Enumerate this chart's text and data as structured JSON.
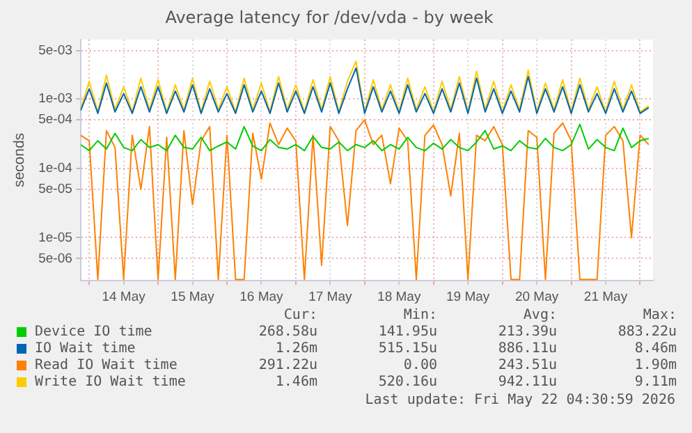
{
  "chart_data": {
    "type": "line",
    "title": "Average latency for /dev/vda - by week",
    "ylabel": "seconds",
    "log": true,
    "grid": true,
    "legend": "bottom",
    "marker": "none",
    "line_style": "solid",
    "xlim": [
      "2026-05-13T21:00",
      "2026-05-22T04:30"
    ],
    "xticks": [
      {
        "value": "2026-05-14T00:00",
        "label": null
      },
      {
        "value": "2026-05-14T12:00",
        "label": "14 May"
      },
      {
        "value": "2026-05-15T00:00",
        "label": null
      },
      {
        "value": "2026-05-15T12:00",
        "label": "15 May"
      },
      {
        "value": "2026-05-16T00:00",
        "label": null
      },
      {
        "value": "2026-05-16T12:00",
        "label": "16 May"
      },
      {
        "value": "2026-05-17T00:00",
        "label": null
      },
      {
        "value": "2026-05-17T12:00",
        "label": "17 May"
      },
      {
        "value": "2026-05-18T00:00",
        "label": null
      },
      {
        "value": "2026-05-18T12:00",
        "label": "18 May"
      },
      {
        "value": "2026-05-19T00:00",
        "label": null
      },
      {
        "value": "2026-05-19T12:00",
        "label": "19 May"
      },
      {
        "value": "2026-05-20T00:00",
        "label": null
      },
      {
        "value": "2026-05-20T12:00",
        "label": "20 May"
      },
      {
        "value": "2026-05-21T00:00",
        "label": null
      },
      {
        "value": "2026-05-21T12:00",
        "label": "21 May"
      },
      {
        "value": "2026-05-22T00:00",
        "label": null
      }
    ],
    "ylim": [
      2.4e-06,
      0.0072
    ],
    "yticks": [
      {
        "value": 5e-06,
        "label": "5e-06"
      },
      {
        "value": 1e-05,
        "label": "1e-05"
      },
      {
        "value": 5e-05,
        "label": "5e-05"
      },
      {
        "value": 0.0001,
        "label": "1e-04"
      },
      {
        "value": 0.0005,
        "label": "5e-04"
      },
      {
        "value": 0.001,
        "label": "1e-03"
      },
      {
        "value": 0.005,
        "label": "5e-03"
      }
    ],
    "x": [
      "2026-05-13T21:00",
      "2026-05-14T00:00",
      "2026-05-14T03:00",
      "2026-05-14T06:00",
      "2026-05-14T09:00",
      "2026-05-14T12:00",
      "2026-05-14T15:00",
      "2026-05-14T18:00",
      "2026-05-14T21:00",
      "2026-05-15T00:00",
      "2026-05-15T03:00",
      "2026-05-15T06:00",
      "2026-05-15T09:00",
      "2026-05-15T12:00",
      "2026-05-15T15:00",
      "2026-05-15T18:00",
      "2026-05-15T21:00",
      "2026-05-16T00:00",
      "2026-05-16T03:00",
      "2026-05-16T06:00",
      "2026-05-16T09:00",
      "2026-05-16T12:00",
      "2026-05-16T15:00",
      "2026-05-16T18:00",
      "2026-05-16T21:00",
      "2026-05-17T00:00",
      "2026-05-17T03:00",
      "2026-05-17T06:00",
      "2026-05-17T09:00",
      "2026-05-17T12:00",
      "2026-05-17T15:00",
      "2026-05-17T18:00",
      "2026-05-17T21:00",
      "2026-05-18T00:00",
      "2026-05-18T03:00",
      "2026-05-18T06:00",
      "2026-05-18T09:00",
      "2026-05-18T12:00",
      "2026-05-18T15:00",
      "2026-05-18T18:00",
      "2026-05-18T21:00",
      "2026-05-19T00:00",
      "2026-05-19T03:00",
      "2026-05-19T06:00",
      "2026-05-19T09:00",
      "2026-05-19T12:00",
      "2026-05-19T15:00",
      "2026-05-19T18:00",
      "2026-05-19T21:00",
      "2026-05-20T00:00",
      "2026-05-20T03:00",
      "2026-05-20T06:00",
      "2026-05-20T09:00",
      "2026-05-20T12:00",
      "2026-05-20T15:00",
      "2026-05-20T18:00",
      "2026-05-20T21:00",
      "2026-05-21T00:00",
      "2026-05-21T03:00",
      "2026-05-21T06:00",
      "2026-05-21T09:00",
      "2026-05-21T12:00",
      "2026-05-21T15:00",
      "2026-05-21T18:00",
      "2026-05-21T21:00",
      "2026-05-22T00:00",
      "2026-05-22T03:00"
    ],
    "series": [
      {
        "name": "Device IO time",
        "color": "#00cc00",
        "values": [
          0.00022,
          0.00018,
          0.00025,
          0.00019,
          0.00032,
          0.0002,
          0.00018,
          0.00026,
          0.0002,
          0.00022,
          0.00018,
          0.0003,
          0.0002,
          0.00019,
          0.00028,
          0.00018,
          0.00021,
          0.00024,
          0.00019,
          0.0004,
          0.00021,
          0.00018,
          0.00026,
          0.0002,
          0.00019,
          0.00022,
          0.00018,
          0.00029,
          0.0002,
          0.00019,
          0.00024,
          0.00018,
          0.00022,
          0.0002,
          0.00025,
          0.00018,
          0.00022,
          0.00019,
          0.00028,
          0.0002,
          0.00018,
          0.00023,
          0.00019,
          0.00026,
          0.0002,
          0.00018,
          0.00024,
          0.00035,
          0.00019,
          0.00021,
          0.00018,
          0.00025,
          0.0002,
          0.00019,
          0.00027,
          0.0002,
          0.00018,
          0.00022,
          0.00043,
          0.00019,
          0.00026,
          0.0002,
          0.00018,
          0.00038,
          0.0002,
          0.00025,
          0.00027
        ]
      },
      {
        "name": "IO Wait time",
        "color": "#0066b3",
        "values": [
          0.00068,
          0.0014,
          0.00062,
          0.0017,
          0.00065,
          0.0012,
          0.00062,
          0.0015,
          0.00065,
          0.0015,
          0.00062,
          0.0013,
          0.00065,
          0.0016,
          0.00062,
          0.0014,
          0.00065,
          0.0012,
          0.00062,
          0.0016,
          0.00065,
          0.0013,
          0.00062,
          0.0017,
          0.00065,
          0.0013,
          0.00062,
          0.0015,
          0.00065,
          0.0017,
          0.00062,
          0.0014,
          0.0028,
          0.00062,
          0.0015,
          0.00065,
          0.0013,
          0.00062,
          0.0016,
          0.00065,
          0.0012,
          0.00062,
          0.0014,
          0.00065,
          0.0017,
          0.00062,
          0.002,
          0.00065,
          0.0014,
          0.00062,
          0.0013,
          0.00065,
          0.0021,
          0.00062,
          0.0014,
          0.00065,
          0.0015,
          0.00062,
          0.0016,
          0.00065,
          0.0012,
          0.00062,
          0.0014,
          0.00065,
          0.0013,
          0.00062,
          0.00075
        ]
      },
      {
        "name": "Read IO Wait time",
        "color": "#ff8000",
        "values": [
          0.0003,
          0.00025,
          2.5e-06,
          0.00035,
          0.0002,
          2.5e-06,
          0.0003,
          5e-05,
          0.0004,
          2.5e-06,
          0.00028,
          2.5e-06,
          0.00035,
          3e-05,
          0.00025,
          0.0004,
          2.5e-06,
          0.0003,
          2.5e-06,
          2.5e-06,
          0.00032,
          7e-05,
          0.00045,
          0.00022,
          0.00038,
          0.00025,
          2.5e-06,
          0.0003,
          4e-06,
          0.0004,
          0.00025,
          1.5e-05,
          0.00035,
          0.0005,
          0.00022,
          0.0003,
          6e-05,
          0.00038,
          0.00025,
          2.5e-06,
          0.0003,
          0.00042,
          0.00022,
          4e-05,
          0.00032,
          2.5e-06,
          0.0003,
          0.00025,
          0.0004,
          0.00022,
          2.5e-06,
          2.5e-06,
          0.00035,
          0.00028,
          2.5e-06,
          0.00032,
          0.00045,
          0.00025,
          2.5e-06,
          2.5e-06,
          2.5e-06,
          0.0003,
          0.0004,
          0.00025,
          1e-05,
          0.0003,
          0.00022
        ]
      },
      {
        "name": "Write IO Wait time",
        "color": "#ffcc00",
        "values": [
          0.0007,
          0.0018,
          0.00065,
          0.0022,
          0.0007,
          0.0015,
          0.00065,
          0.002,
          0.0007,
          0.0019,
          0.00065,
          0.0016,
          0.0007,
          0.002,
          0.00065,
          0.0018,
          0.0007,
          0.0015,
          0.00065,
          0.002,
          0.0007,
          0.0017,
          0.00065,
          0.0021,
          0.0007,
          0.0016,
          0.00065,
          0.0019,
          0.0007,
          0.0021,
          0.00065,
          0.0018,
          0.0035,
          0.00065,
          0.0019,
          0.0007,
          0.0016,
          0.00065,
          0.002,
          0.0007,
          0.0015,
          0.00065,
          0.0018,
          0.0007,
          0.0021,
          0.00065,
          0.0025,
          0.0007,
          0.0018,
          0.00065,
          0.0016,
          0.0007,
          0.0026,
          0.00065,
          0.0017,
          0.0007,
          0.0019,
          0.00065,
          0.002,
          0.0007,
          0.0015,
          0.00065,
          0.0018,
          0.0007,
          0.0016,
          0.00065,
          0.0008
        ]
      }
    ],
    "annotations": [
      "Cur:",
      "Min:",
      "Avg:",
      "Max:",
      "268.58u",
      "141.95u",
      "213.39u",
      "883.22u",
      "1.26m",
      "515.15u",
      "886.11u",
      "8.46m",
      "291.22u",
      "0.00",
      "243.51u",
      "1.90m",
      "1.46m",
      "520.16u",
      "942.11u",
      "9.11m",
      "Last update: Fri May 22 04:30:59 2026"
    ]
  }
}
